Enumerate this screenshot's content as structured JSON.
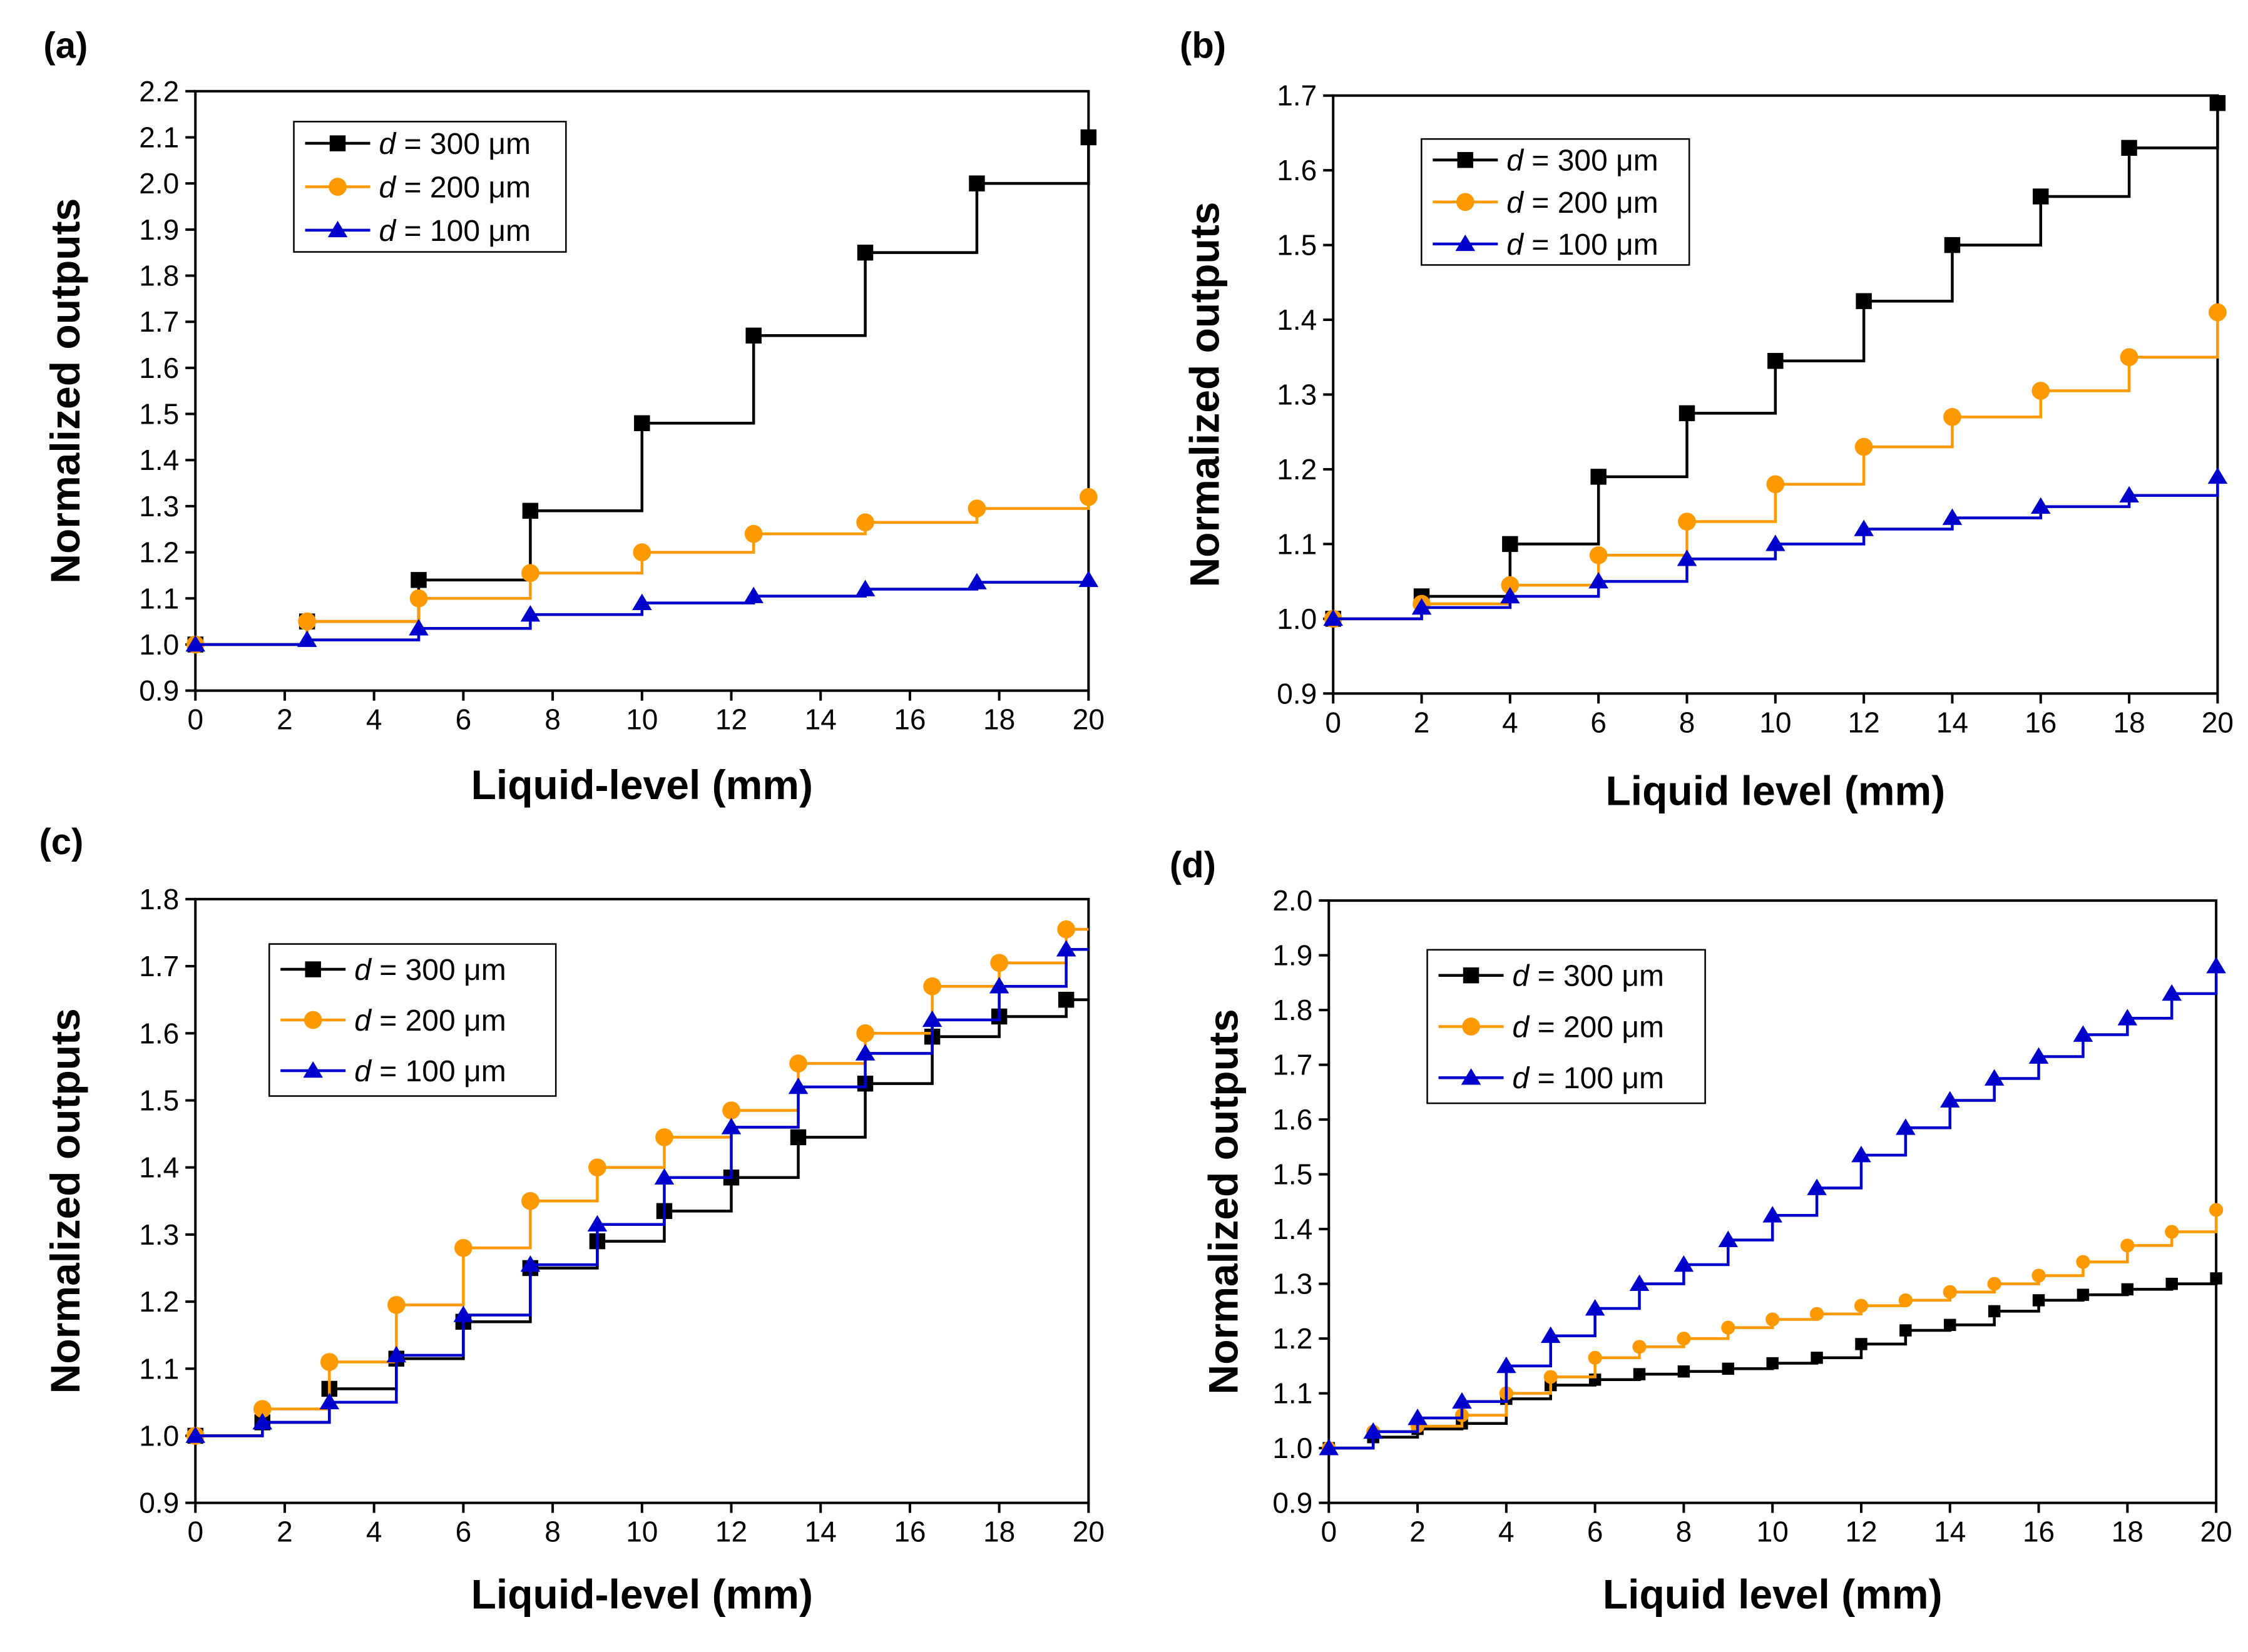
{
  "figure": {
    "panels_label_style": "bold"
  },
  "chart_data": [
    {
      "panel_label": "(a)",
      "type": "line",
      "step": true,
      "xlabel": "Liquid-level (mm)",
      "ylabel": "Normalized outputs",
      "xlim": [
        0,
        20
      ],
      "ylim": [
        0.9,
        2.2
      ],
      "xticks": [
        "0",
        "2",
        "4",
        "6",
        "8",
        "10",
        "12",
        "14",
        "16",
        "18",
        "20"
      ],
      "yticks": [
        "0.9",
        "1.0",
        "1.1",
        "1.2",
        "1.3",
        "1.4",
        "1.5",
        "1.6",
        "1.7",
        "1.8",
        "1.9",
        "2.0",
        "2.1",
        "2.2"
      ],
      "legend_position": "top-left",
      "series": [
        {
          "name_prefix": "d",
          "name_suffix": " = 300 μm",
          "color": "#000000",
          "marker": "square",
          "x": [
            0,
            2.5,
            5,
            7.5,
            10,
            12.5,
            15,
            17.5,
            20
          ],
          "y": [
            1.0,
            1.05,
            1.14,
            1.29,
            1.48,
            1.67,
            1.85,
            2.0,
            2.1
          ]
        },
        {
          "name_prefix": "d",
          "name_suffix": " = 200 μm",
          "color": "#ff9900",
          "marker": "circle",
          "x": [
            0,
            2.5,
            5,
            7.5,
            10,
            12.5,
            15,
            17.5,
            20
          ],
          "y": [
            1.0,
            1.05,
            1.1,
            1.155,
            1.2,
            1.24,
            1.265,
            1.295,
            1.32
          ]
        },
        {
          "name_prefix": "d",
          "name_suffix": " = 100 μm",
          "color": "#0000cc",
          "marker": "triangle",
          "x": [
            0,
            2.5,
            5,
            7.5,
            10,
            12.5,
            15,
            17.5,
            20
          ],
          "y": [
            1.0,
            1.01,
            1.035,
            1.065,
            1.09,
            1.105,
            1.12,
            1.135,
            1.14
          ]
        }
      ]
    },
    {
      "panel_label": "(b)",
      "type": "line",
      "step": true,
      "xlabel": "Liquid level (mm)",
      "ylabel": "Normalized outputs",
      "xlim": [
        0,
        20
      ],
      "ylim": [
        0.9,
        1.7
      ],
      "xticks": [
        "0",
        "2",
        "4",
        "6",
        "8",
        "10",
        "12",
        "14",
        "16",
        "18",
        "20"
      ],
      "yticks": [
        "0.9",
        "1.0",
        "1.1",
        "1.2",
        "1.3",
        "1.4",
        "1.5",
        "1.6",
        "1.7"
      ],
      "legend_position": "top-left",
      "series": [
        {
          "name_prefix": "d",
          "name_suffix": " = 300 μm",
          "color": "#000000",
          "marker": "square",
          "x": [
            0,
            2,
            4,
            6,
            8,
            10,
            12,
            14,
            16,
            18,
            20
          ],
          "y": [
            1.0,
            1.03,
            1.1,
            1.19,
            1.275,
            1.345,
            1.425,
            1.5,
            1.565,
            1.63,
            1.69
          ]
        },
        {
          "name_prefix": "d",
          "name_suffix": " = 200 μm",
          "color": "#ff9900",
          "marker": "circle",
          "x": [
            0,
            2,
            4,
            6,
            8,
            10,
            12,
            14,
            16,
            18,
            20
          ],
          "y": [
            1.0,
            1.02,
            1.045,
            1.085,
            1.13,
            1.18,
            1.23,
            1.27,
            1.305,
            1.35,
            1.41
          ]
        },
        {
          "name_prefix": "d",
          "name_suffix": " = 100 μm",
          "color": "#0000cc",
          "marker": "triangle",
          "x": [
            0,
            2,
            4,
            6,
            8,
            10,
            12,
            14,
            16,
            18,
            20
          ],
          "y": [
            1.0,
            1.015,
            1.03,
            1.05,
            1.08,
            1.1,
            1.12,
            1.135,
            1.15,
            1.165,
            1.19
          ]
        }
      ]
    },
    {
      "panel_label": "(c)",
      "type": "line",
      "step": true,
      "xlabel": "Liquid-level (mm)",
      "ylabel": "Normalized outputs",
      "xlim": [
        0,
        20
      ],
      "ylim": [
        0.9,
        1.8
      ],
      "xticks": [
        "0",
        "2",
        "4",
        "6",
        "8",
        "10",
        "12",
        "14",
        "16",
        "18",
        "20"
      ],
      "yticks": [
        "0.9",
        "1.0",
        "1.1",
        "1.2",
        "1.3",
        "1.4",
        "1.5",
        "1.6",
        "1.7",
        "1.8"
      ],
      "legend_position": "top-left",
      "series": [
        {
          "name_prefix": "d",
          "name_suffix": " = 300 μm",
          "color": "#000000",
          "marker": "square",
          "x": [
            0,
            1.5,
            3,
            4.5,
            6,
            7.5,
            9,
            10.5,
            12,
            13.5,
            15,
            16.5,
            18,
            19.5
          ],
          "y": [
            1.0,
            1.02,
            1.07,
            1.115,
            1.17,
            1.25,
            1.29,
            1.335,
            1.385,
            1.445,
            1.525,
            1.595,
            1.625,
            1.65
          ]
        },
        {
          "name_prefix": "d",
          "name_suffix": " = 200 μm",
          "color": "#ff9900",
          "marker": "circle",
          "x": [
            0,
            1.5,
            3,
            4.5,
            6,
            7.5,
            9,
            10.5,
            12,
            13.5,
            15,
            16.5,
            18,
            19.5
          ],
          "y": [
            1.0,
            1.04,
            1.11,
            1.195,
            1.28,
            1.35,
            1.4,
            1.445,
            1.485,
            1.555,
            1.6,
            1.67,
            1.705,
            1.755
          ]
        },
        {
          "name_prefix": "d",
          "name_suffix": " = 100 μm",
          "color": "#0000cc",
          "marker": "triangle",
          "x": [
            0,
            1.5,
            3,
            4.5,
            6,
            7.5,
            9,
            10.5,
            12,
            13.5,
            15,
            16.5,
            18,
            19.5
          ],
          "y": [
            1.0,
            1.02,
            1.05,
            1.12,
            1.18,
            1.255,
            1.315,
            1.385,
            1.46,
            1.52,
            1.57,
            1.62,
            1.67,
            1.725
          ]
        }
      ]
    },
    {
      "panel_label": "(d)",
      "type": "line",
      "step": true,
      "xlabel": "Liquid level (mm)",
      "ylabel": "Normalized outputs",
      "xlim": [
        0,
        20
      ],
      "ylim": [
        0.9,
        2.0
      ],
      "xticks": [
        "0",
        "2",
        "4",
        "6",
        "8",
        "10",
        "12",
        "14",
        "16",
        "18",
        "20"
      ],
      "yticks": [
        "0.9",
        "1.0",
        "1.1",
        "1.2",
        "1.3",
        "1.4",
        "1.5",
        "1.6",
        "1.7",
        "1.8",
        "1.9",
        "2.0"
      ],
      "legend_position": "top-left",
      "series": [
        {
          "name_prefix": "d",
          "name_suffix": " = 300 μm",
          "color": "#000000",
          "marker": "square-small",
          "x": [
            0,
            1,
            2,
            3,
            4,
            5,
            6,
            7,
            8,
            9,
            10,
            11,
            12,
            13,
            14,
            15,
            16,
            17,
            18,
            19,
            20
          ],
          "y": [
            1.0,
            1.02,
            1.035,
            1.045,
            1.09,
            1.115,
            1.125,
            1.135,
            1.14,
            1.145,
            1.155,
            1.165,
            1.19,
            1.215,
            1.225,
            1.25,
            1.27,
            1.28,
            1.29,
            1.3,
            1.31
          ]
        },
        {
          "name_prefix": "d",
          "name_suffix": " = 200 μm",
          "color": "#ff9900",
          "marker": "circle-small",
          "x": [
            0,
            1,
            2,
            3,
            4,
            5,
            6,
            7,
            8,
            9,
            10,
            11,
            12,
            13,
            14,
            15,
            16,
            17,
            18,
            19,
            20
          ],
          "y": [
            1.0,
            1.03,
            1.04,
            1.06,
            1.1,
            1.13,
            1.165,
            1.185,
            1.2,
            1.22,
            1.235,
            1.245,
            1.26,
            1.27,
            1.285,
            1.3,
            1.315,
            1.34,
            1.37,
            1.395,
            1.435
          ]
        },
        {
          "name_prefix": "d",
          "name_suffix": " = 100 μm",
          "color": "#0000cc",
          "marker": "triangle",
          "x": [
            0,
            1,
            2,
            3,
            4,
            5,
            6,
            7,
            8,
            9,
            10,
            11,
            12,
            13,
            14,
            15,
            16,
            17,
            18,
            19,
            20
          ],
          "y": [
            1.0,
            1.03,
            1.055,
            1.085,
            1.15,
            1.205,
            1.255,
            1.3,
            1.335,
            1.38,
            1.425,
            1.475,
            1.535,
            1.585,
            1.635,
            1.675,
            1.715,
            1.755,
            1.785,
            1.83,
            1.88
          ]
        }
      ]
    }
  ]
}
